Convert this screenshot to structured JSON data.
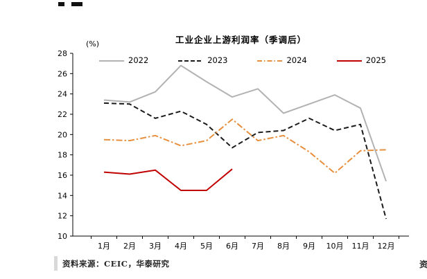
{
  "header": {
    "unit_label": "(%)"
  },
  "footer": {
    "source": "资料来源：CEIC，华泰研究",
    "right_truncated": "资"
  },
  "chart_data": {
    "type": "line",
    "title": "工业企业上游利润率（季调后）",
    "xlabel": "",
    "ylabel": "(%)",
    "ylim": [
      10,
      28
    ],
    "ytick_step": 2,
    "grid": false,
    "legend_position": "top",
    "categories": [
      "1月",
      "2月",
      "3月",
      "4月",
      "5月",
      "6月",
      "7月",
      "8月",
      "9月",
      "10月",
      "11月",
      "12月"
    ],
    "series": [
      {
        "name": "2022",
        "color": "#b2b2b2",
        "style": "solid",
        "values": [
          23.4,
          23.2,
          24.2,
          26.8,
          25.2,
          23.7,
          24.5,
          22.1,
          23.0,
          23.9,
          22.6,
          15.4
        ]
      },
      {
        "name": "2023",
        "color": "#1a1a1a",
        "style": "dashed",
        "values": [
          23.1,
          23.0,
          21.6,
          22.3,
          21.0,
          18.7,
          20.2,
          20.4,
          21.6,
          20.4,
          21.0,
          11.7
        ]
      },
      {
        "name": "2024",
        "color": "#e78f3c",
        "style": "dashdot",
        "values": [
          19.5,
          19.4,
          19.9,
          18.9,
          19.4,
          21.5,
          19.4,
          19.9,
          18.3,
          16.2,
          18.4,
          18.5
        ]
      },
      {
        "name": "2025",
        "color": "#c00000",
        "style": "solid",
        "values": [
          16.3,
          16.1,
          16.5,
          14.5,
          14.5,
          16.6,
          null,
          null,
          null,
          null,
          null,
          null
        ]
      }
    ]
  }
}
